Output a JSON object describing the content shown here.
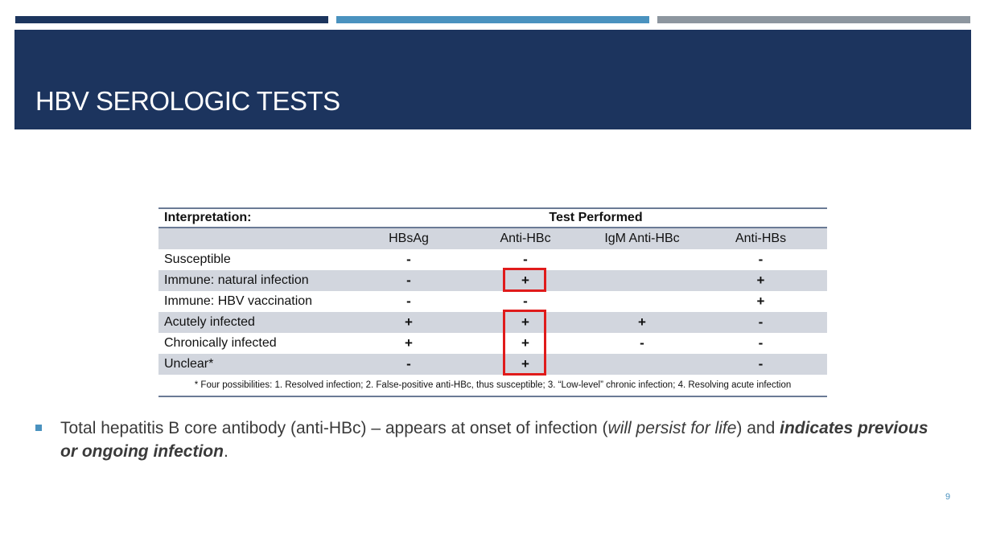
{
  "slide": {
    "title": "HBV SEROLOGIC TESTS",
    "page_number": "9"
  },
  "table": {
    "interpretation_header": "Interpretation:",
    "test_header": "Test Performed",
    "columns": [
      "HBsAg",
      "Anti-HBc",
      "IgM Anti-HBc",
      "Anti-HBs"
    ],
    "rows": [
      {
        "label": "Susceptible",
        "values": [
          "-",
          "-",
          "",
          "-"
        ]
      },
      {
        "label": "Immune: natural infection",
        "values": [
          "-",
          "+",
          "",
          "+"
        ]
      },
      {
        "label": "Immune: HBV vaccination",
        "values": [
          "-",
          "-",
          "",
          "+"
        ]
      },
      {
        "label": "Acutely infected",
        "values": [
          "+",
          "+",
          "+",
          "-"
        ]
      },
      {
        "label": "Chronically infected",
        "values": [
          "+",
          "+",
          "-",
          "-"
        ]
      },
      {
        "label": "Unclear*",
        "values": [
          "-",
          "+",
          "",
          "-"
        ]
      }
    ],
    "footnote": "* Four possibilities: 1. Resolved infection; 2. False-positive anti-HBc, thus susceptible; 3. “Low-level” chronic infection; 4. Resolving acute infection"
  },
  "bullet": {
    "part1": "Total hepatitis B core antibody (anti-HBc) – appears at onset of infection (",
    "part2_italic": "will persist for life",
    "part3": ") and ",
    "part4_bold_italic": "indicates previous or ongoing infection",
    "part5": "."
  },
  "colors": {
    "header_bg": "#1c345e",
    "accent_blue": "#4a92bf",
    "highlight_red": "#e01b1b",
    "row_shade": "#d2d6de"
  }
}
